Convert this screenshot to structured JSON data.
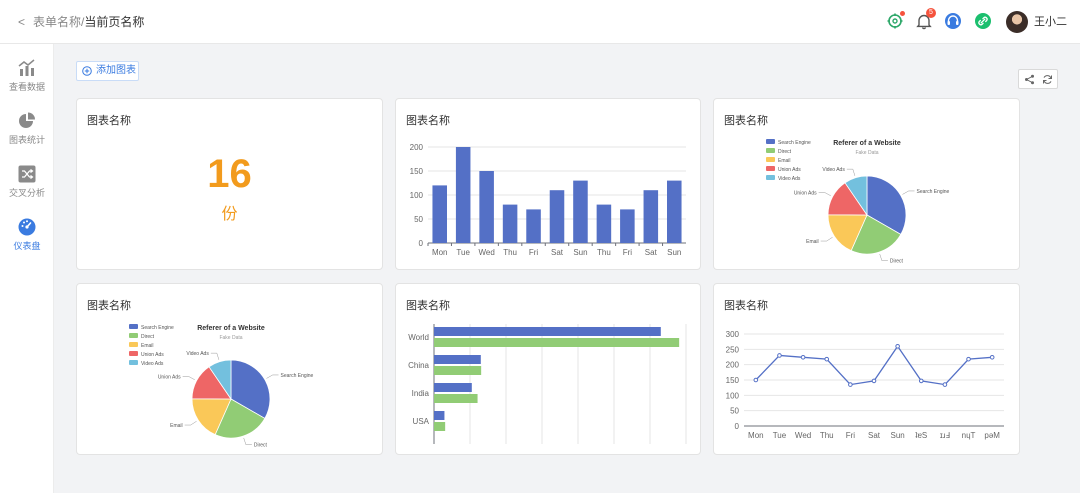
{
  "header": {
    "back_icon": "chevron-left-icon",
    "breadcrumb_parent": "表单名称/",
    "breadcrumb_current": "当前页名称",
    "notification_count": "5",
    "username": "王小二",
    "icons": [
      "settings-status-icon",
      "bell-icon",
      "headset-icon",
      "link-icon"
    ],
    "icon_colors": {
      "accent": "#3a7be0",
      "green": "#1bbf6e",
      "badge": "#f5533d"
    }
  },
  "sidebar": {
    "items": [
      {
        "label": "查看数据",
        "icon": "bar-line-chart-icon"
      },
      {
        "label": "图表统计",
        "icon": "pie-chart-icon"
      },
      {
        "label": "交叉分析",
        "icon": "shuffle-icon"
      },
      {
        "label": "仪表盘",
        "icon": "dashboard-icon"
      }
    ],
    "active": "仪表盘"
  },
  "toolbar": {
    "add_chart_label": "添加图表",
    "share_icon": "share-icon",
    "refresh_icon": "refresh-icon"
  },
  "cards": [
    {
      "title": "图表名称",
      "kind": "number",
      "value": "16",
      "unit": "份"
    },
    {
      "title": "图表名称",
      "kind": "bar"
    },
    {
      "title": "图表名称",
      "kind": "pie"
    },
    {
      "title": "图表名称",
      "kind": "pie"
    },
    {
      "title": "图表名称",
      "kind": "hbar"
    },
    {
      "title": "图表名称",
      "kind": "line"
    }
  ],
  "chart_data": [
    {
      "type": "bar",
      "categories": [
        "Mon",
        "Tue",
        "Wed",
        "Thu",
        "Fri",
        "Sat",
        "Sun",
        "Thu",
        "Fri",
        "Sat",
        "Sun"
      ],
      "values": [
        120,
        200,
        150,
        80,
        70,
        110,
        130,
        80,
        70,
        110,
        130
      ],
      "yticks": [
        0,
        50,
        100,
        150,
        200
      ],
      "ylim": [
        0,
        200
      ],
      "color": "#5470c6",
      "grid": true
    },
    {
      "type": "pie",
      "title": "Referer of a Website",
      "subtitle": "Fake Data",
      "legend_position": "top-left",
      "series": [
        {
          "name": "Search Engine",
          "value": 1048,
          "color": "#5470c6"
        },
        {
          "name": "Direct",
          "value": 735,
          "color": "#91cc75"
        },
        {
          "name": "Email",
          "value": 580,
          "color": "#fac858"
        },
        {
          "name": "Union Ads",
          "value": 484,
          "color": "#ee6666"
        },
        {
          "name": "Video Ads",
          "value": 300,
          "color": "#73c0de"
        }
      ]
    },
    {
      "type": "pie",
      "title": "Referer of a Website",
      "subtitle": "Fake Data",
      "legend_position": "top-left",
      "series": [
        {
          "name": "Search Engine",
          "value": 1048,
          "color": "#5470c6"
        },
        {
          "name": "Direct",
          "value": 735,
          "color": "#91cc75"
        },
        {
          "name": "Email",
          "value": 580,
          "color": "#fac858"
        },
        {
          "name": "Union Ads",
          "value": 484,
          "color": "#ee6666"
        },
        {
          "name": "Video Ads",
          "value": 300,
          "color": "#73c0de"
        }
      ]
    },
    {
      "type": "bar",
      "orientation": "horizontal",
      "categories": [
        "World",
        "China",
        "India",
        "USA"
      ],
      "series": [
        {
          "values": [
            630000,
            130000,
            105000,
            29000
          ],
          "color": "#5470c6"
        },
        {
          "values": [
            681000,
            131000,
            121000,
            31000
          ],
          "color": "#91cc75"
        }
      ],
      "xlim": [
        0,
        700000
      ],
      "grid": true
    },
    {
      "type": "line",
      "categories": [
        "Mon",
        "Tue",
        "Wed",
        "Thu",
        "Fri",
        "Sat",
        "Sun",
        "Sat",
        "Fri",
        "Thu",
        "Wed"
      ],
      "category_labels_display": [
        "Mon",
        "Tue",
        "Wed",
        "Thu",
        "Fri",
        "Sat",
        "Sun",
        "ʇɐS",
        "ɪɹℲ",
        "nɥT",
        "pǝM"
      ],
      "values": [
        150,
        230,
        224,
        218,
        135,
        147,
        260,
        147,
        135,
        218,
        224
      ],
      "yticks": [
        0,
        50,
        100,
        150,
        200,
        250,
        300
      ],
      "ylim": [
        0,
        300
      ],
      "color": "#5470c6",
      "grid": true
    }
  ]
}
